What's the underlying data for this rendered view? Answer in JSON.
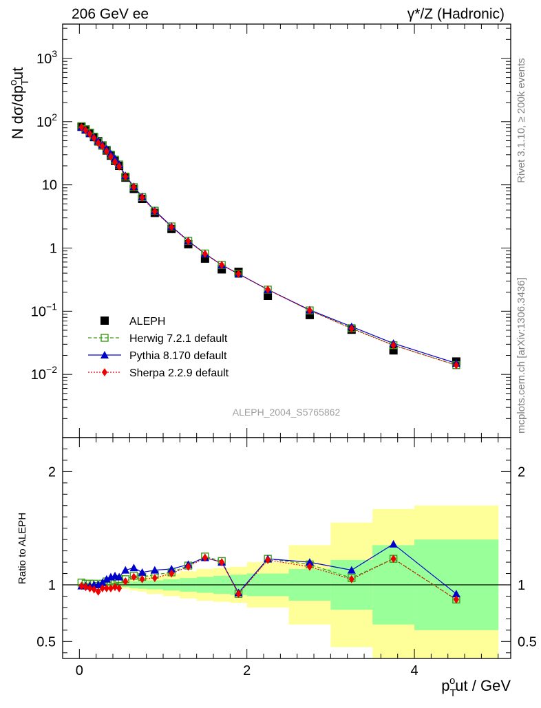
{
  "header": {
    "left": "206 GeV ee",
    "right": "γ*/Z (Hadronic)"
  },
  "side_labels": {
    "rivet": "Rivet 3.1.10, ≥ 200k events",
    "mcplots": "mcplots.cern.ch [arXiv:1306.3436]"
  },
  "analysis_label": "ALEPH_2004_S5765862",
  "colors": {
    "data": "#000000",
    "herwig": "#3a9a1a",
    "pythia": "#0000cc",
    "sherpa": "#ee0000",
    "band_outer": "#ffff99",
    "band_inner": "#99ff99"
  },
  "chart_data": [
    {
      "type": "scatter",
      "scale": "log",
      "ylabel": "N dσ/dpoTut",
      "ylabel_parts": {
        "base": "N dσ/dp",
        "sup": "o",
        "sub": "T",
        "tail": "ut"
      },
      "ylim": [
        0.001,
        3500
      ],
      "xlim": [
        -0.2,
        5.15
      ],
      "y_ticks": [
        {
          "v": 0.01,
          "label": "10",
          "exp": "−2"
        },
        {
          "v": 0.1,
          "label": "10",
          "exp": "−1"
        },
        {
          "v": 1,
          "label": "1",
          "exp": ""
        },
        {
          "v": 10,
          "label": "10",
          "exp": ""
        },
        {
          "v": 100,
          "label": "10",
          "exp": "2"
        },
        {
          "v": 1000,
          "label": "10",
          "exp": "3"
        }
      ],
      "x": [
        0.025,
        0.075,
        0.125,
        0.175,
        0.225,
        0.275,
        0.325,
        0.375,
        0.425,
        0.475,
        0.55,
        0.65,
        0.75,
        0.9,
        1.1,
        1.3,
        1.5,
        1.7,
        1.9,
        2.25,
        2.75,
        3.25,
        3.75,
        4.5
      ],
      "series": [
        {
          "name": "ALEPH",
          "key": "data",
          "values": [
            83,
            75,
            66,
            57,
            49,
            42,
            35,
            29,
            24,
            20,
            13,
            8.6,
            6.0,
            3.6,
            2.0,
            1.15,
            0.68,
            0.46,
            0.42,
            0.175,
            0.087,
            0.051,
            0.024,
            0.016
          ]
        },
        {
          "name": "Herwig 7.2.1 default",
          "key": "herwig",
          "values": [
            85,
            76,
            67,
            58,
            48,
            42,
            36,
            30,
            25,
            21,
            13.5,
            9.2,
            6.4,
            3.9,
            2.2,
            1.3,
            0.82,
            0.54,
            0.39,
            0.22,
            0.103,
            0.054,
            0.029,
            0.014
          ]
        },
        {
          "name": "Pythia 8.170 default",
          "key": "pythia",
          "values": [
            82,
            74,
            65,
            57,
            49,
            43,
            37,
            31,
            26,
            21,
            14,
            9.4,
            6.5,
            3.9,
            2.2,
            1.3,
            0.81,
            0.54,
            0.39,
            0.22,
            0.105,
            0.057,
            0.031,
            0.015
          ]
        },
        {
          "name": "Sherpa 2.2.9 default",
          "key": "sherpa",
          "values": [
            82,
            73,
            64,
            55,
            46,
            41,
            34,
            28,
            23,
            19.5,
            13.5,
            9.2,
            6.3,
            3.8,
            2.15,
            1.28,
            0.81,
            0.54,
            0.39,
            0.22,
            0.103,
            0.053,
            0.029,
            0.014
          ]
        }
      ]
    },
    {
      "type": "line",
      "ylabel": "Ratio to ALEPH",
      "xlabel": "poTut / GeV",
      "xlabel_parts": {
        "base": "p",
        "sup": "o",
        "sub": "T",
        "tail": "ut / GeV"
      },
      "ylim": [
        0.35,
        2.3
      ],
      "xlim": [
        -0.2,
        5.15
      ],
      "y_ticks": [
        {
          "v": 0.5,
          "label": "0.5"
        },
        {
          "v": 1,
          "label": "1"
        },
        {
          "v": 2,
          "label": "2"
        }
      ],
      "x_ticks": [
        {
          "v": 0,
          "label": "0"
        },
        {
          "v": 2,
          "label": "2"
        },
        {
          "v": 4,
          "label": "4"
        }
      ],
      "bins": [
        0,
        0.05,
        0.1,
        0.15,
        0.2,
        0.25,
        0.3,
        0.35,
        0.4,
        0.45,
        0.5,
        0.6,
        0.7,
        0.8,
        1.0,
        1.2,
        1.4,
        1.6,
        1.8,
        2.0,
        2.5,
        3.0,
        3.5,
        4.0,
        5.0
      ],
      "band_inner_halfwidth": [
        0.015,
        0.015,
        0.015,
        0.015,
        0.015,
        0.015,
        0.015,
        0.015,
        0.02,
        0.02,
        0.02,
        0.03,
        0.035,
        0.04,
        0.05,
        0.06,
        0.07,
        0.08,
        0.09,
        0.1,
        0.14,
        0.22,
        0.35,
        0.4
      ],
      "band_outer_halfwidth": [
        0.02,
        0.02,
        0.02,
        0.02,
        0.02,
        0.02,
        0.02,
        0.025,
        0.03,
        0.03,
        0.035,
        0.05,
        0.06,
        0.08,
        0.1,
        0.12,
        0.14,
        0.15,
        0.16,
        0.2,
        0.35,
        0.55,
        0.67,
        0.7
      ],
      "x": [
        0.025,
        0.075,
        0.125,
        0.175,
        0.225,
        0.275,
        0.325,
        0.375,
        0.425,
        0.475,
        0.55,
        0.65,
        0.75,
        0.9,
        1.1,
        1.3,
        1.5,
        1.7,
        1.9,
        2.25,
        2.75,
        3.25,
        3.75,
        4.5
      ],
      "series": [
        {
          "name": "Herwig 7.2.1 default",
          "key": "herwig",
          "values": [
            1.02,
            1.01,
            1.01,
            1.01,
            0.99,
            1.01,
            1.03,
            1.03,
            1.04,
            1.05,
            1.05,
            1.08,
            1.07,
            1.09,
            1.11,
            1.17,
            1.25,
            1.21,
            0.92,
            1.23,
            1.18,
            1.06,
            1.23,
            0.87
          ]
        },
        {
          "name": "Pythia 8.170 default",
          "key": "pythia",
          "values": [
            0.99,
            0.99,
            0.99,
            1.0,
            1.0,
            1.02,
            1.05,
            1.07,
            1.08,
            1.07,
            1.13,
            1.15,
            1.11,
            1.13,
            1.14,
            1.18,
            1.24,
            1.2,
            0.93,
            1.23,
            1.2,
            1.13,
            1.36,
            0.92
          ]
        },
        {
          "name": "Sherpa 2.2.9 default",
          "key": "sherpa",
          "values": [
            0.99,
            0.98,
            0.97,
            0.96,
            0.94,
            0.97,
            0.97,
            0.97,
            0.98,
            0.97,
            1.03,
            1.07,
            1.05,
            1.06,
            1.1,
            1.16,
            1.24,
            1.2,
            0.92,
            1.22,
            1.16,
            1.05,
            1.23,
            0.87
          ]
        }
      ]
    }
  ],
  "legend": {
    "items": [
      {
        "label": "ALEPH",
        "key": "data"
      },
      {
        "label": "Herwig 7.2.1 default",
        "key": "herwig"
      },
      {
        "label": "Pythia 8.170 default",
        "key": "pythia"
      },
      {
        "label": "Sherpa 2.2.9 default",
        "key": "sherpa"
      }
    ]
  }
}
